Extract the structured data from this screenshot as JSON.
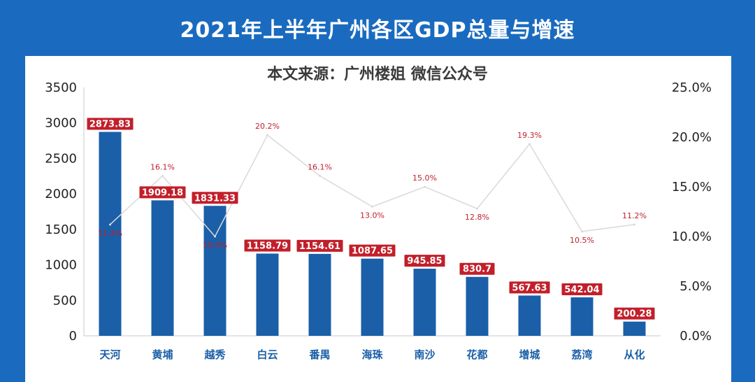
{
  "header": {
    "title": "2021年上半年广州各区GDP总量与增速",
    "source": "本文来源：广州楼姐 微信公众号"
  },
  "colors": {
    "background": "#1a6bbf",
    "bar": "#1a5fa8",
    "label_bg": "#c21f2a",
    "line": "#d9d9d9",
    "pct_text": "#c21f2a"
  },
  "chart_data": {
    "type": "bar+line",
    "title": "2021年上半年广州各区GDP总量与增速",
    "categories": [
      "天河",
      "黄埔",
      "越秀",
      "白云",
      "番禺",
      "海珠",
      "南沙",
      "花都",
      "增城",
      "荔湾",
      "从化"
    ],
    "series": [
      {
        "name": "GDP总量",
        "type": "bar",
        "axis": "left",
        "values": [
          2873.83,
          1909.18,
          1831.33,
          1158.79,
          1154.61,
          1087.65,
          945.85,
          830.7,
          567.63,
          542.04,
          200.28
        ],
        "labels": [
          "2873.83",
          "1909.18",
          "1831.33",
          "1158.79",
          "1154.61",
          "1087.65",
          "945.85",
          "830.7",
          "567.63",
          "542.04",
          "200.28"
        ]
      },
      {
        "name": "增速",
        "type": "line",
        "axis": "right",
        "values": [
          11.2,
          16.1,
          10.0,
          20.2,
          16.1,
          13.0,
          15.0,
          12.8,
          19.3,
          10.5,
          11.2
        ],
        "labels": [
          "11.2%",
          "16.1%",
          "10.0%",
          "20.2%",
          "16.1%",
          "13.0%",
          "15.0%",
          "12.8%",
          "19.3%",
          "10.5%",
          "11.2%"
        ]
      }
    ],
    "y_left": {
      "min": 0,
      "max": 3500,
      "ticks": [
        "0",
        "500",
        "1000",
        "1500",
        "2000",
        "2500",
        "3000",
        "3500"
      ]
    },
    "y_right": {
      "min": 0,
      "max": 25,
      "ticks": [
        "0.0%",
        "5.0%",
        "10.0%",
        "15.0%",
        "20.0%",
        "25.0%"
      ]
    },
    "grid": false,
    "legend": "none"
  }
}
